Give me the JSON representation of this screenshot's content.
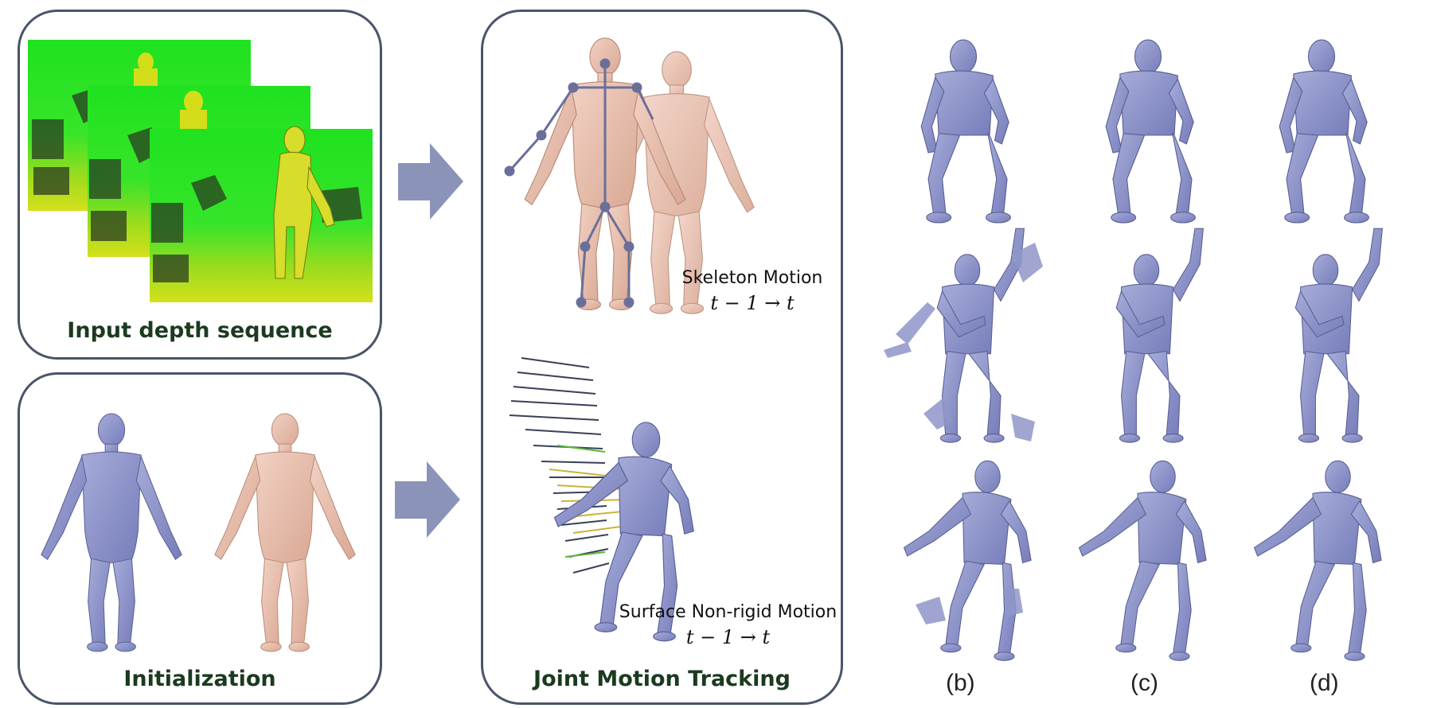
{
  "panels": {
    "input": {
      "title": "Input depth sequence"
    },
    "init": {
      "title": "Initialization"
    },
    "tracking": {
      "title": "Joint Motion Tracking",
      "skeleton_label": "Skeleton Motion",
      "skeleton_time": "t − 1  → t",
      "surface_label": "Surface Non-rigid Motion",
      "surface_time": "t − 1  → t"
    }
  },
  "columns": [
    "(b)",
    "(c)",
    "(d)"
  ],
  "colors": {
    "panel_border": "#4a5468",
    "arrow": "#8b93b8",
    "mesh": "#8f96c8",
    "skin": "#e9bfae",
    "depth_green": "#2ee62e",
    "depth_yellow": "#d8e21a"
  }
}
